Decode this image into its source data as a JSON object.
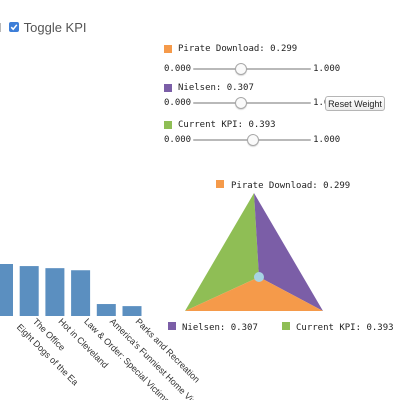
{
  "toggle": {
    "prev_fragment": "I",
    "label": "Toggle KPI",
    "checked": true
  },
  "weights": [
    {
      "label": "Pirate Download: 0.299",
      "color": "#f59a4a",
      "value": 0.299,
      "min": "0.000",
      "max": "1.000",
      "slider_value": 0.4
    },
    {
      "label": "Nielsen: 0.307",
      "color": "#7b5ea7",
      "value": 0.307,
      "min": "0.000",
      "max": "1.000",
      "slider_value": 0.4
    },
    {
      "label": "Current KPI: 0.393",
      "color": "#8fbe55",
      "value": 0.393,
      "min": "0.000",
      "max": "1.000",
      "slider_value": 0.5
    }
  ],
  "reset_button": {
    "label": "Reset Weight"
  },
  "triangle": {
    "top_label": "Pirate Download: 0.299",
    "left_label": "Nielsen: 0.307",
    "right_label": "Current KPI: 0.393",
    "colors": {
      "top": "#f59a4a",
      "left": "#7b5ea7",
      "right": "#8fbe55"
    },
    "point_color": "#a7d3e4"
  },
  "chart_data": {
    "type": "bar",
    "categories": [
      "",
      "The Office",
      "Hot in Cleveland",
      "Law & Order: Special Victims Uni",
      "America's Funniest Home Videos",
      "Parks and Recreation"
    ],
    "sub_labels": [
      "",
      "Eight Dogs of the Ea",
      "",
      "",
      "",
      ""
    ],
    "values": [
      1.0,
      0.96,
      0.92,
      0.88,
      0.23,
      0.19
    ],
    "bar_color": "#5b8fc0"
  }
}
